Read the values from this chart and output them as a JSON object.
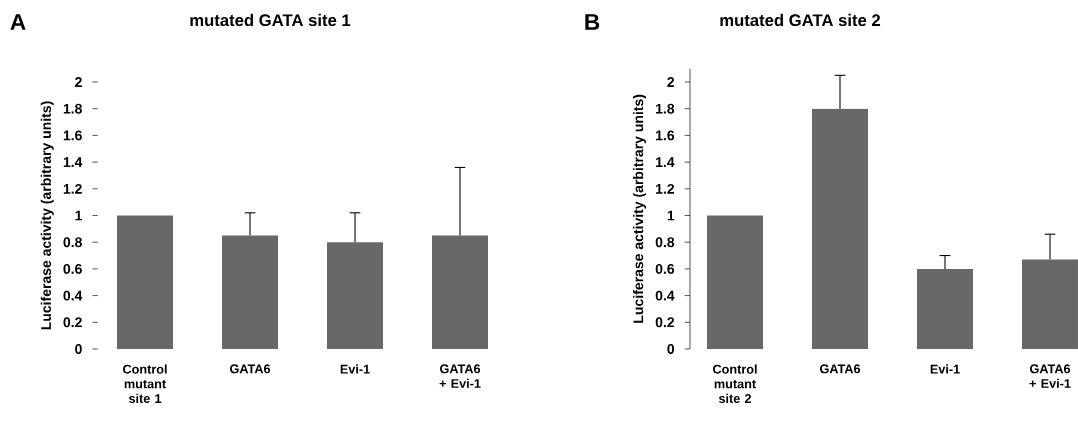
{
  "chart_data": [
    {
      "type": "bar",
      "title": "mutated GATA site 1",
      "ylabel": "Luciferase activity (arbitrary units)",
      "annotations": [
        "A"
      ],
      "categories": [
        "Control mutant site 1",
        "GATA6",
        "Evi-1",
        "GATA6 + Evi-1"
      ],
      "values": [
        1.0,
        0.85,
        0.8,
        0.85
      ],
      "errors": [
        null,
        [
          0.85,
          1.02
        ],
        [
          0.8,
          1.02
        ],
        [
          0.85,
          1.36
        ]
      ],
      "color": "#686868",
      "ylim": [
        0,
        2
      ],
      "yticks": [
        0,
        0.2,
        0.4,
        0.6,
        0.8,
        1,
        1.2,
        1.4,
        1.6,
        1.8,
        2
      ],
      "grid": false
    },
    {
      "type": "bar",
      "title": "mutated GATA site 2",
      "ylabel": "Luciferase activity (arbitrary units)",
      "annotations": [
        "B"
      ],
      "categories": [
        "Control mutant site 2",
        "GATA6",
        "Evi-1",
        "GATA6 + Evi-1"
      ],
      "values": [
        1.0,
        1.8,
        0.6,
        0.67
      ],
      "errors": [
        null,
        [
          1.8,
          2.05
        ],
        [
          0.6,
          0.7
        ],
        [
          0.67,
          0.86
        ]
      ],
      "color": "#686868",
      "ylim": [
        0,
        2.1
      ],
      "yticks": [
        0,
        0.2,
        0.4,
        0.6,
        0.8,
        1,
        1.2,
        1.4,
        1.6,
        1.8,
        2
      ],
      "grid": false
    }
  ]
}
